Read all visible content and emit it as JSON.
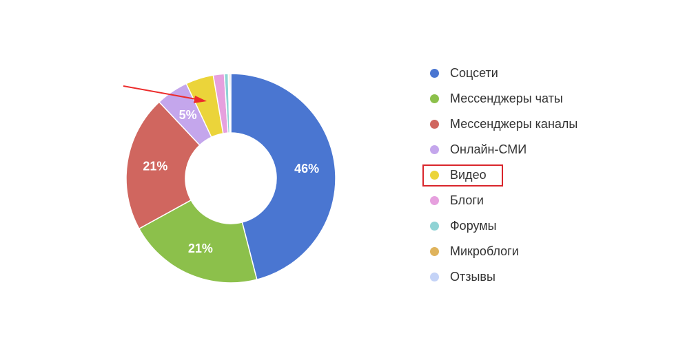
{
  "chart_data": {
    "type": "pie",
    "title": "",
    "donut": true,
    "series": [
      {
        "name": "Соцсети",
        "value": 46,
        "label": "46%",
        "color": "#4a76d1"
      },
      {
        "name": "Мессенджеры чаты",
        "value": 21,
        "label": "21%",
        "color": "#8cc04b"
      },
      {
        "name": "Мессенджеры каналы",
        "value": 21,
        "label": "21%",
        "color": "#d0665f"
      },
      {
        "name": "Онлайн-СМИ",
        "value": 5,
        "label": "5%",
        "color": "#c4a6ec"
      },
      {
        "name": "Видео",
        "value": 4.3,
        "label": "",
        "color": "#ebd43a"
      },
      {
        "name": "Блоги",
        "value": 1.7,
        "label": "",
        "color": "#e6a0de"
      },
      {
        "name": "Форумы",
        "value": 0.6,
        "label": "",
        "color": "#8fd3d5"
      },
      {
        "name": "Микроблоги",
        "value": 0.2,
        "label": "",
        "color": "#dfb35c"
      },
      {
        "name": "Отзывы",
        "value": 0.2,
        "label": "",
        "color": "#c4d3f7"
      }
    ],
    "legend_position": "right",
    "highlighted_legend_item": "Видео",
    "annotation": {
      "type": "arrow",
      "color": "#ec2b2b",
      "points_to": "Видео"
    }
  }
}
